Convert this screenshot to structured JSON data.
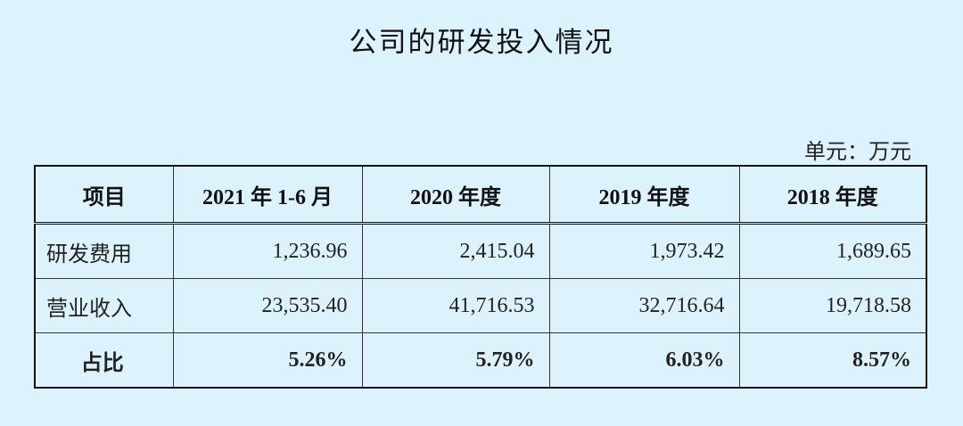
{
  "header": {
    "title": "公司的研发投入情况",
    "unit": "单元：万元"
  },
  "table": {
    "columns": [
      "项目",
      "2021 年 1-6 月",
      "2020 年度",
      "2019 年度",
      "2018 年度"
    ],
    "rows": [
      [
        "研发费用",
        "1,236.96",
        "2,415.04",
        "1,973.42",
        "1,689.65"
      ],
      [
        "营业收入",
        "23,535.40",
        "41,716.53",
        "32,716.64",
        "19,718.58"
      ],
      [
        "占比",
        "5.26%",
        "5.79%",
        "6.03%",
        "8.57%"
      ]
    ]
  }
}
